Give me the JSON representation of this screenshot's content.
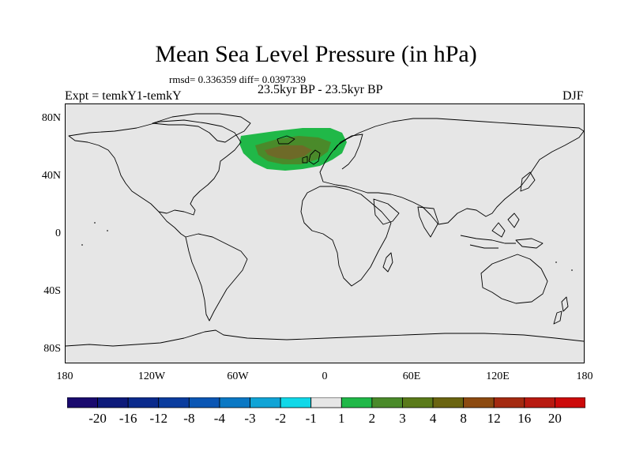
{
  "plot": {
    "title": "Mean Sea Level Pressure (in hPa)",
    "stats": "rmsd= 0.336359 diff= 0.0397339",
    "experiment": "Expt = temkY1-temkY",
    "period": "23.5kyr BP - 23.5kyr BP",
    "season": "DJF"
  },
  "axes": {
    "lat_labels": [
      "80N",
      "40N",
      "0",
      "40S",
      "80S"
    ],
    "lon_labels": [
      "180",
      "120W",
      "60W",
      "0",
      "60E",
      "120E",
      "180"
    ]
  },
  "colorbar": {
    "labels": [
      "-20",
      "-16",
      "-12",
      "-8",
      "-4",
      "-3",
      "-2",
      "-1",
      "1",
      "2",
      "3",
      "4",
      "8",
      "12",
      "16",
      "20"
    ],
    "colors": [
      "#1a0a6e",
      "#0d1a7a",
      "#0a2a8c",
      "#0a3c9e",
      "#0a56b4",
      "#0a78c4",
      "#10a4d6",
      "#10d8e8",
      "#e6e6e6",
      "#20b848",
      "#4a8a2a",
      "#5a7a1a",
      "#6a6410",
      "#8c4a10",
      "#a42a10",
      "#b81a10",
      "#cc0a0a"
    ]
  },
  "anomaly": {
    "region": "North Atlantic",
    "levels": [
      "1",
      "2",
      "3"
    ],
    "colors": [
      "#20b848",
      "#4a8a2a",
      "#6e6a28"
    ]
  }
}
